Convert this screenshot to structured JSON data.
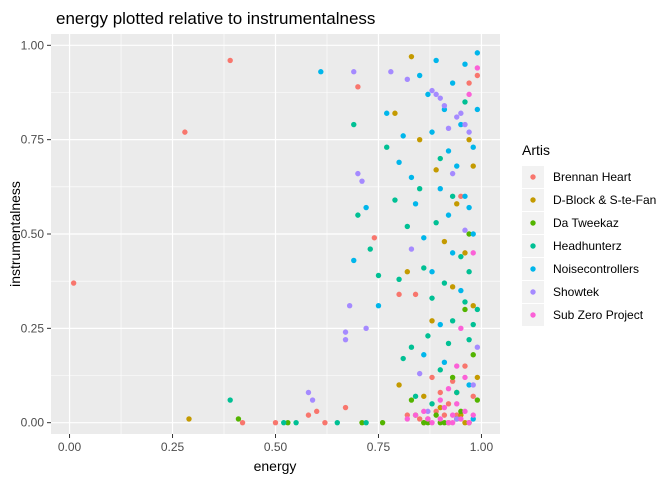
{
  "chart_data": {
    "type": "scatter",
    "title": "energy plotted relative to instrumentalness",
    "xlabel": "energy",
    "ylabel": "instrumentalness",
    "xlim": [
      -0.045,
      1.045
    ],
    "ylim": [
      -0.03,
      1.03
    ],
    "x_ticks": [
      0.0,
      0.25,
      0.5,
      0.75,
      1.0
    ],
    "x_tick_labels": [
      "0.00",
      "0.25",
      "0.50",
      "0.75",
      "1.00"
    ],
    "y_ticks": [
      0.0,
      0.25,
      0.5,
      0.75,
      1.0
    ],
    "y_tick_labels": [
      "0.00",
      "0.25",
      "0.50",
      "0.75",
      "1.00"
    ],
    "grid": true,
    "legend": {
      "title": "Artis",
      "placement": "right"
    },
    "series": [
      {
        "name": "Brennan Heart",
        "color": "#F8766D",
        "points": [
          [
            0.01,
            0.37
          ],
          [
            0.28,
            0.77
          ],
          [
            0.39,
            0.96
          ],
          [
            0.42,
            0.0
          ],
          [
            0.5,
            0.0
          ],
          [
            0.58,
            0.02
          ],
          [
            0.6,
            0.03
          ],
          [
            0.62,
            0.0
          ],
          [
            0.67,
            0.04
          ],
          [
            0.7,
            0.89
          ],
          [
            0.74,
            0.49
          ],
          [
            0.8,
            0.34
          ],
          [
            0.84,
            0.34
          ],
          [
            0.86,
            0.0
          ],
          [
            0.88,
            0.12
          ],
          [
            0.9,
            0.08
          ],
          [
            0.92,
            0.05
          ],
          [
            0.94,
            0.02
          ],
          [
            0.95,
            0.6
          ],
          [
            0.96,
            0.15
          ],
          [
            0.97,
            0.9
          ],
          [
            0.98,
            0.07
          ],
          [
            0.85,
            0.01
          ],
          [
            0.93,
            0.11
          ],
          [
            0.89,
            0.03
          ],
          [
            0.91,
            0.02
          ],
          [
            0.99,
            0.92
          ],
          [
            0.82,
            0.02
          ]
        ]
      },
      {
        "name": "D-Block & S-te-Fan",
        "color": "#C49A00",
        "points": [
          [
            0.29,
            0.01
          ],
          [
            0.79,
            0.82
          ],
          [
            0.82,
            0.4
          ],
          [
            0.83,
            0.97
          ],
          [
            0.85,
            0.75
          ],
          [
            0.86,
            0.07
          ],
          [
            0.88,
            0.27
          ],
          [
            0.9,
            0.04
          ],
          [
            0.91,
            0.48
          ],
          [
            0.93,
            0.36
          ],
          [
            0.94,
            0.58
          ],
          [
            0.95,
            0.02
          ],
          [
            0.96,
            0.45
          ],
          [
            0.97,
            0.75
          ],
          [
            0.98,
            0.68
          ],
          [
            0.99,
            0.12
          ],
          [
            0.87,
            0.01
          ],
          [
            0.92,
            0.0
          ],
          [
            0.8,
            0.1
          ],
          [
            0.84,
            0.02
          ],
          [
            0.96,
            0.0
          ],
          [
            0.98,
            0.31
          ],
          [
            0.94,
            0.08
          ],
          [
            0.89,
            0.67
          ]
        ]
      },
      {
        "name": "Da Tweekaz",
        "color": "#53B400",
        "points": [
          [
            0.41,
            0.01
          ],
          [
            0.53,
            0.0
          ],
          [
            0.71,
            0.0
          ],
          [
            0.76,
            0.0
          ],
          [
            0.83,
            0.06
          ],
          [
            0.87,
            0.0
          ],
          [
            0.89,
            0.02
          ],
          [
            0.91,
            0.0
          ],
          [
            0.93,
            0.12
          ],
          [
            0.95,
            0.03
          ],
          [
            0.96,
            0.3
          ],
          [
            0.97,
            0.0
          ],
          [
            0.98,
            0.18
          ],
          [
            0.99,
            0.06
          ],
          [
            0.9,
            0.0
          ],
          [
            0.94,
            0.01
          ],
          [
            0.86,
            0.0
          ],
          [
            0.97,
            0.5
          ]
        ]
      },
      {
        "name": "Headhunterz",
        "color": "#00C094",
        "points": [
          [
            0.39,
            0.06
          ],
          [
            0.52,
            0.0
          ],
          [
            0.55,
            0.0
          ],
          [
            0.65,
            0.0
          ],
          [
            0.69,
            0.79
          ],
          [
            0.7,
            0.55
          ],
          [
            0.72,
            0.0
          ],
          [
            0.73,
            0.46
          ],
          [
            0.75,
            0.39
          ],
          [
            0.77,
            0.73
          ],
          [
            0.79,
            0.59
          ],
          [
            0.8,
            0.38
          ],
          [
            0.81,
            0.17
          ],
          [
            0.82,
            0.52
          ],
          [
            0.83,
            0.2
          ],
          [
            0.84,
            0.07
          ],
          [
            0.85,
            0.62
          ],
          [
            0.86,
            0.41
          ],
          [
            0.87,
            0.23
          ],
          [
            0.88,
            0.33
          ],
          [
            0.89,
            0.53
          ],
          [
            0.9,
            0.14
          ],
          [
            0.91,
            0.37
          ],
          [
            0.92,
            0.21
          ],
          [
            0.93,
            0.27
          ],
          [
            0.94,
            0.08
          ],
          [
            0.95,
            0.44
          ],
          [
            0.96,
            0.32
          ],
          [
            0.97,
            0.22
          ],
          [
            0.98,
            0.26
          ],
          [
            0.99,
            0.3
          ],
          [
            0.9,
            0.7
          ],
          [
            0.93,
            0.6
          ],
          [
            0.96,
            0.85
          ],
          [
            0.88,
            0.05
          ],
          [
            0.97,
            0.4
          ]
        ]
      },
      {
        "name": "Noisecontrollers",
        "color": "#00B6EB",
        "points": [
          [
            0.61,
            0.93
          ],
          [
            0.69,
            0.43
          ],
          [
            0.72,
            0.57
          ],
          [
            0.75,
            0.31
          ],
          [
            0.77,
            0.82
          ],
          [
            0.8,
            0.69
          ],
          [
            0.81,
            0.76
          ],
          [
            0.83,
            0.65
          ],
          [
            0.85,
            0.92
          ],
          [
            0.86,
            0.49
          ],
          [
            0.87,
            0.87
          ],
          [
            0.88,
            0.77
          ],
          [
            0.89,
            0.96
          ],
          [
            0.9,
            0.62
          ],
          [
            0.91,
            0.83
          ],
          [
            0.92,
            0.72
          ],
          [
            0.93,
            0.9
          ],
          [
            0.94,
            0.68
          ],
          [
            0.95,
            0.79
          ],
          [
            0.96,
            0.95
          ],
          [
            0.97,
            0.57
          ],
          [
            0.98,
            0.73
          ],
          [
            0.99,
            0.98
          ],
          [
            0.84,
            0.58
          ],
          [
            0.92,
            0.55
          ],
          [
            0.95,
            0.35
          ],
          [
            0.97,
            0.1
          ],
          [
            0.98,
            0.5
          ],
          [
            0.9,
            0.26
          ],
          [
            0.86,
            0.18
          ],
          [
            0.93,
            0.45
          ],
          [
            0.96,
            0.6
          ],
          [
            0.99,
            0.83
          ],
          [
            0.88,
            0.4
          ],
          [
            0.91,
            0.16
          ],
          [
            0.98,
            0.01
          ]
        ]
      },
      {
        "name": "Showtek",
        "color": "#A58AFF",
        "points": [
          [
            0.58,
            0.08
          ],
          [
            0.59,
            0.06
          ],
          [
            0.67,
            0.24
          ],
          [
            0.67,
            0.22
          ],
          [
            0.68,
            0.31
          ],
          [
            0.69,
            0.93
          ],
          [
            0.7,
            0.66
          ],
          [
            0.71,
            0.64
          ],
          [
            0.72,
            0.25
          ],
          [
            0.78,
            0.93
          ],
          [
            0.82,
            0.91
          ],
          [
            0.88,
            0.88
          ],
          [
            0.89,
            0.87
          ],
          [
            0.9,
            0.86
          ],
          [
            0.91,
            0.84
          ],
          [
            0.92,
            0.78
          ],
          [
            0.94,
            0.81
          ],
          [
            0.95,
            0.82
          ],
          [
            0.96,
            0.79
          ],
          [
            0.97,
            0.77
          ],
          [
            0.98,
            0.1
          ],
          [
            0.85,
            0.13
          ],
          [
            0.93,
            0.66
          ],
          [
            0.96,
            0.51
          ],
          [
            0.99,
            0.2
          ],
          [
            0.87,
            0.03
          ],
          [
            0.94,
            0.01
          ],
          [
            0.83,
            0.46
          ]
        ]
      },
      {
        "name": "Sub Zero Project",
        "color": "#FB61D7",
        "points": [
          [
            0.82,
            0.01
          ],
          [
            0.84,
            0.02
          ],
          [
            0.86,
            0.03
          ],
          [
            0.88,
            0.0
          ],
          [
            0.9,
            0.01
          ],
          [
            0.91,
            0.04
          ],
          [
            0.92,
            0.0
          ],
          [
            0.93,
            0.02
          ],
          [
            0.94,
            0.05
          ],
          [
            0.95,
            0.01
          ],
          [
            0.96,
            0.03
          ],
          [
            0.97,
            0.0
          ],
          [
            0.98,
            0.02
          ],
          [
            0.99,
            0.94
          ],
          [
            0.97,
            0.87
          ],
          [
            0.96,
            0.12
          ],
          [
            0.94,
            0.15
          ],
          [
            0.92,
            0.09
          ],
          [
            0.98,
            0.45
          ],
          [
            0.95,
            0.25
          ],
          [
            0.9,
            0.06
          ],
          [
            0.87,
            0.01
          ],
          [
            0.93,
            0.0
          ]
        ]
      }
    ]
  }
}
